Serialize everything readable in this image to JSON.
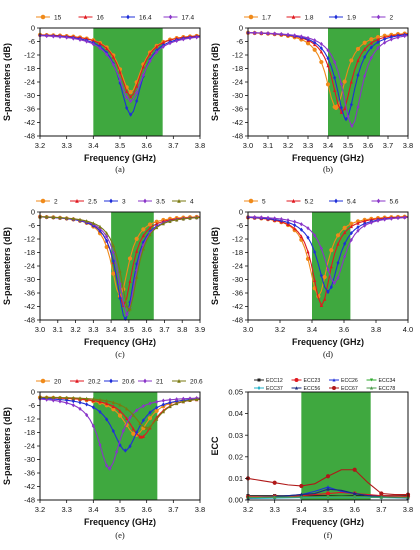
{
  "chart_data": [
    {
      "panel_label": "(a)",
      "type": "line",
      "xlabel": "Frequency (GHz)",
      "ylabel": "S-parameters (dB)",
      "xlim": [
        3.2,
        3.8
      ],
      "xticks": [
        "3.2",
        "3.3",
        "3.4",
        "3.5",
        "3.6",
        "3.7",
        "3.8"
      ],
      "ylim": [
        -48,
        0
      ],
      "yticks": [
        "0",
        "-6",
        "-12",
        "-18",
        "-24",
        "-30",
        "-36",
        "-42",
        "-48"
      ],
      "band": [
        3.4,
        3.66
      ],
      "band_color": "#3fa83f",
      "legend_placement": "top",
      "series": [
        {
          "name": "15",
          "color": "#f08a1a",
          "marker": "circle",
          "f0": 3.54,
          "depth": 26,
          "width": 0.05,
          "floor": -2.5
        },
        {
          "name": "16",
          "color": "#e0181f",
          "marker": "triangle",
          "f0": 3.54,
          "depth": 28,
          "width": 0.05,
          "floor": -2.5
        },
        {
          "name": "16.4",
          "color": "#1f2fd8",
          "marker": "diamond",
          "f0": 3.54,
          "depth": 36,
          "width": 0.05,
          "floor": -2.5
        },
        {
          "name": "17.4",
          "color": "#8a35c9",
          "marker": "diamond",
          "f0": 3.54,
          "depth": 30,
          "width": 0.06,
          "floor": -2.5
        }
      ]
    },
    {
      "panel_label": "(b)",
      "type": "line",
      "xlabel": "Frequency (GHz)",
      "ylabel": "S-parameters (dB)",
      "xlim": [
        3.0,
        3.8
      ],
      "xticks": [
        "3.0",
        "3.1",
        "3.2",
        "3.3",
        "3.4",
        "3.5",
        "3.6",
        "3.7",
        "3.8"
      ],
      "ylim": [
        -48,
        0
      ],
      "yticks": [
        "0",
        "-6",
        "-12",
        "-18",
        "-24",
        "-30",
        "-36",
        "-42",
        "-48"
      ],
      "band": [
        3.4,
        3.66
      ],
      "band_color": "#3fa83f",
      "legend_placement": "top",
      "series": [
        {
          "name": "1.7",
          "color": "#f08a1a",
          "marker": "circle",
          "f0": 3.44,
          "depth": 34,
          "width": 0.06,
          "floor": -1.5
        },
        {
          "name": "1.8",
          "color": "#e0181f",
          "marker": "triangle",
          "f0": 3.47,
          "depth": 36,
          "width": 0.06,
          "floor": -1.5
        },
        {
          "name": "1.9",
          "color": "#1f2fd8",
          "marker": "diamond",
          "f0": 3.49,
          "depth": 39,
          "width": 0.06,
          "floor": -1.5
        },
        {
          "name": "2",
          "color": "#8a35c9",
          "marker": "diamond",
          "f0": 3.52,
          "depth": 42,
          "width": 0.06,
          "floor": -1.5
        }
      ]
    },
    {
      "panel_label": "(c)",
      "type": "line",
      "xlabel": "Frequency (GHz)",
      "ylabel": "S-parameters (dB)",
      "xlim": [
        3.0,
        3.9
      ],
      "xticks": [
        "3.0",
        "3.1",
        "3.2",
        "3.3",
        "3.4",
        "3.5",
        "3.6",
        "3.7",
        "3.8",
        "3.9"
      ],
      "ylim": [
        -48,
        0
      ],
      "yticks": [
        "0",
        "-6",
        "-12",
        "-18",
        "-24",
        "-30",
        "-36",
        "-42",
        "-48"
      ],
      "band": [
        3.4,
        3.64
      ],
      "band_color": "#3fa83f",
      "legend_placement": "top",
      "series": [
        {
          "name": "2",
          "color": "#f08a1a",
          "marker": "circle",
          "f0": 3.45,
          "depth": 36,
          "width": 0.06,
          "floor": -1.5
        },
        {
          "name": "2.5",
          "color": "#e0181f",
          "marker": "triangle",
          "f0": 3.47,
          "depth": 40,
          "width": 0.06,
          "floor": -1.5
        },
        {
          "name": "3",
          "color": "#1f2fd8",
          "marker": "diamond",
          "f0": 3.48,
          "depth": 46,
          "width": 0.06,
          "floor": -1.5
        },
        {
          "name": "3.5",
          "color": "#8a35c9",
          "marker": "diamond",
          "f0": 3.49,
          "depth": 44,
          "width": 0.06,
          "floor": -1.5
        },
        {
          "name": "4",
          "color": "#7a7a10",
          "marker": "triangle",
          "f0": 3.5,
          "depth": 42,
          "width": 0.06,
          "floor": -1.5
        }
      ]
    },
    {
      "panel_label": "(d)",
      "type": "line",
      "xlabel": "Frequency (GHz)",
      "ylabel": "S-parameters (dB)",
      "xlim": [
        3.0,
        4.0
      ],
      "xticks": [
        "3.0",
        "3.2",
        "3.4",
        "3.6",
        "3.8",
        "4.0"
      ],
      "ylim": [
        -48,
        0
      ],
      "yticks": [
        "0",
        "-6",
        "-12",
        "-18",
        "-24",
        "-30",
        "-36",
        "-42",
        "-48"
      ],
      "band": [
        3.4,
        3.64
      ],
      "band_color": "#3fa83f",
      "legend_placement": "top",
      "series": [
        {
          "name": "5",
          "color": "#f08a1a",
          "marker": "circle",
          "f0": 3.44,
          "depth": 36,
          "width": 0.07,
          "floor": -1.5
        },
        {
          "name": "5.2",
          "color": "#e0181f",
          "marker": "triangle",
          "f0": 3.46,
          "depth": 40,
          "width": 0.07,
          "floor": -1.5
        },
        {
          "name": "5.4",
          "color": "#1f2fd8",
          "marker": "diamond",
          "f0": 3.5,
          "depth": 34,
          "width": 0.08,
          "floor": -1.5
        },
        {
          "name": "5.6",
          "color": "#8a35c9",
          "marker": "diamond",
          "f0": 3.54,
          "depth": 30,
          "width": 0.08,
          "floor": -1.5
        }
      ]
    },
    {
      "panel_label": "(e)",
      "type": "line",
      "xlabel": "Frequency (GHz)",
      "ylabel": "S-parameters (dB)",
      "xlim": [
        3.2,
        3.8
      ],
      "xticks": [
        "3.2",
        "3.3",
        "3.4",
        "3.5",
        "3.6",
        "3.7",
        "3.8"
      ],
      "ylim": [
        -48,
        0
      ],
      "yticks": [
        "0",
        "-6",
        "-12",
        "-18",
        "-24",
        "-30",
        "-36",
        "-42",
        "-48"
      ],
      "band": [
        3.4,
        3.64
      ],
      "band_color": "#3fa83f",
      "legend_placement": "top",
      "series": [
        {
          "name": "20",
          "color": "#f08a1a",
          "marker": "circle",
          "f0": 3.56,
          "depth": 17,
          "width": 0.06,
          "floor": -2
        },
        {
          "name": "20.2",
          "color": "#e0181f",
          "marker": "triangle",
          "f0": 3.58,
          "depth": 18,
          "width": 0.06,
          "floor": -2
        },
        {
          "name": "20.6",
          "color": "#1f2fd8",
          "marker": "diamond",
          "f0": 3.52,
          "depth": 24,
          "width": 0.06,
          "floor": -2
        },
        {
          "name": "21",
          "color": "#8a35c9",
          "marker": "diamond",
          "f0": 3.46,
          "depth": 32,
          "width": 0.05,
          "floor": -2
        },
        {
          "name": "20.6",
          "color": "#7a7a10",
          "marker": "triangle",
          "f0": 3.6,
          "depth": 14,
          "width": 0.06,
          "floor": -2
        }
      ]
    },
    {
      "panel_label": "(f)",
      "type": "line",
      "xlabel": "Frequency (GHz)",
      "ylabel": "ECC",
      "xlim": [
        3.2,
        3.8
      ],
      "xticks": [
        "3.2",
        "3.3",
        "3.4",
        "3.5",
        "3.6",
        "3.7",
        "3.8"
      ],
      "ylim": [
        0,
        0.05
      ],
      "yticks": [
        "0.00",
        "0.01",
        "0.02",
        "0.03",
        "0.04",
        "0.05"
      ],
      "band": [
        3.4,
        3.66
      ],
      "band_color": "#3fa83f",
      "legend_placement": "top",
      "series": [
        {
          "name": "ECC12",
          "color": "#222222",
          "marker": "square",
          "x": [
            3.2,
            3.25,
            3.3,
            3.35,
            3.4,
            3.45,
            3.5,
            3.55,
            3.6,
            3.65,
            3.7,
            3.75,
            3.8
          ],
          "y": [
            0.002,
            0.002,
            0.002,
            0.002,
            0.002,
            0.002,
            0.002,
            0.002,
            0.002,
            0.002,
            0.002,
            0.002,
            0.002
          ]
        },
        {
          "name": "ECC23",
          "color": "#e0181f",
          "marker": "circle",
          "x": [
            3.2,
            3.25,
            3.3,
            3.35,
            3.4,
            3.45,
            3.5,
            3.55,
            3.6,
            3.65,
            3.7,
            3.75,
            3.8
          ],
          "y": [
            0.0015,
            0.0015,
            0.0016,
            0.0017,
            0.002,
            0.0025,
            0.003,
            0.0035,
            0.003,
            0.0025,
            0.002,
            0.0018,
            0.0016
          ]
        },
        {
          "name": "ECC26",
          "color": "#1f2fd8",
          "marker": "triangle",
          "x": [
            3.2,
            3.25,
            3.3,
            3.35,
            3.4,
            3.45,
            3.5,
            3.55,
            3.6,
            3.65,
            3.7,
            3.75,
            3.8
          ],
          "y": [
            0.001,
            0.0012,
            0.0015,
            0.002,
            0.0025,
            0.004,
            0.006,
            0.004,
            0.003,
            0.002,
            0.0015,
            0.0012,
            0.001
          ]
        },
        {
          "name": "ECC34",
          "color": "#2aa82a",
          "marker": "triangle-down",
          "x": [
            3.2,
            3.25,
            3.3,
            3.35,
            3.4,
            3.45,
            3.5,
            3.55,
            3.6,
            3.65,
            3.7,
            3.75,
            3.8
          ],
          "y": [
            0.001,
            0.001,
            0.0011,
            0.0012,
            0.0013,
            0.0014,
            0.0016,
            0.0018,
            0.0016,
            0.0014,
            0.0012,
            0.0011,
            0.001
          ]
        },
        {
          "name": "ECC37",
          "color": "#20b0c8",
          "marker": "diamond",
          "x": [
            3.2,
            3.25,
            3.3,
            3.35,
            3.4,
            3.45,
            3.5,
            3.55,
            3.6,
            3.65,
            3.7,
            3.75,
            3.8
          ],
          "y": [
            0.0008,
            0.0008,
            0.0009,
            0.001,
            0.0011,
            0.0012,
            0.0013,
            0.0014,
            0.0013,
            0.0012,
            0.0011,
            0.001,
            0.0009
          ]
        },
        {
          "name": "ECC56",
          "color": "#1a2a80",
          "marker": "triangle",
          "x": [
            3.2,
            3.25,
            3.3,
            3.35,
            3.4,
            3.45,
            3.5,
            3.55,
            3.6,
            3.65,
            3.7,
            3.75,
            3.8
          ],
          "y": [
            0.001,
            0.0012,
            0.0014,
            0.002,
            0.0025,
            0.003,
            0.005,
            0.0045,
            0.003,
            0.002,
            0.0015,
            0.0012,
            0.001
          ]
        },
        {
          "name": "ECC67",
          "color": "#b01818",
          "marker": "circle",
          "x": [
            3.2,
            3.25,
            3.3,
            3.35,
            3.4,
            3.45,
            3.5,
            3.55,
            3.6,
            3.65,
            3.7,
            3.75,
            3.8
          ],
          "y": [
            0.01,
            0.009,
            0.008,
            0.007,
            0.0065,
            0.0075,
            0.011,
            0.014,
            0.014,
            0.008,
            0.003,
            0.0025,
            0.0025
          ]
        },
        {
          "name": "ECC78",
          "color": "#4a9a4a",
          "marker": "triangle",
          "x": [
            3.2,
            3.25,
            3.3,
            3.35,
            3.4,
            3.45,
            3.5,
            3.55,
            3.6,
            3.65,
            3.7,
            3.75,
            3.8
          ],
          "y": [
            0.0012,
            0.0012,
            0.0013,
            0.0013,
            0.0014,
            0.0014,
            0.0015,
            0.0015,
            0.0015,
            0.0014,
            0.0013,
            0.0013,
            0.0012
          ]
        }
      ]
    }
  ]
}
